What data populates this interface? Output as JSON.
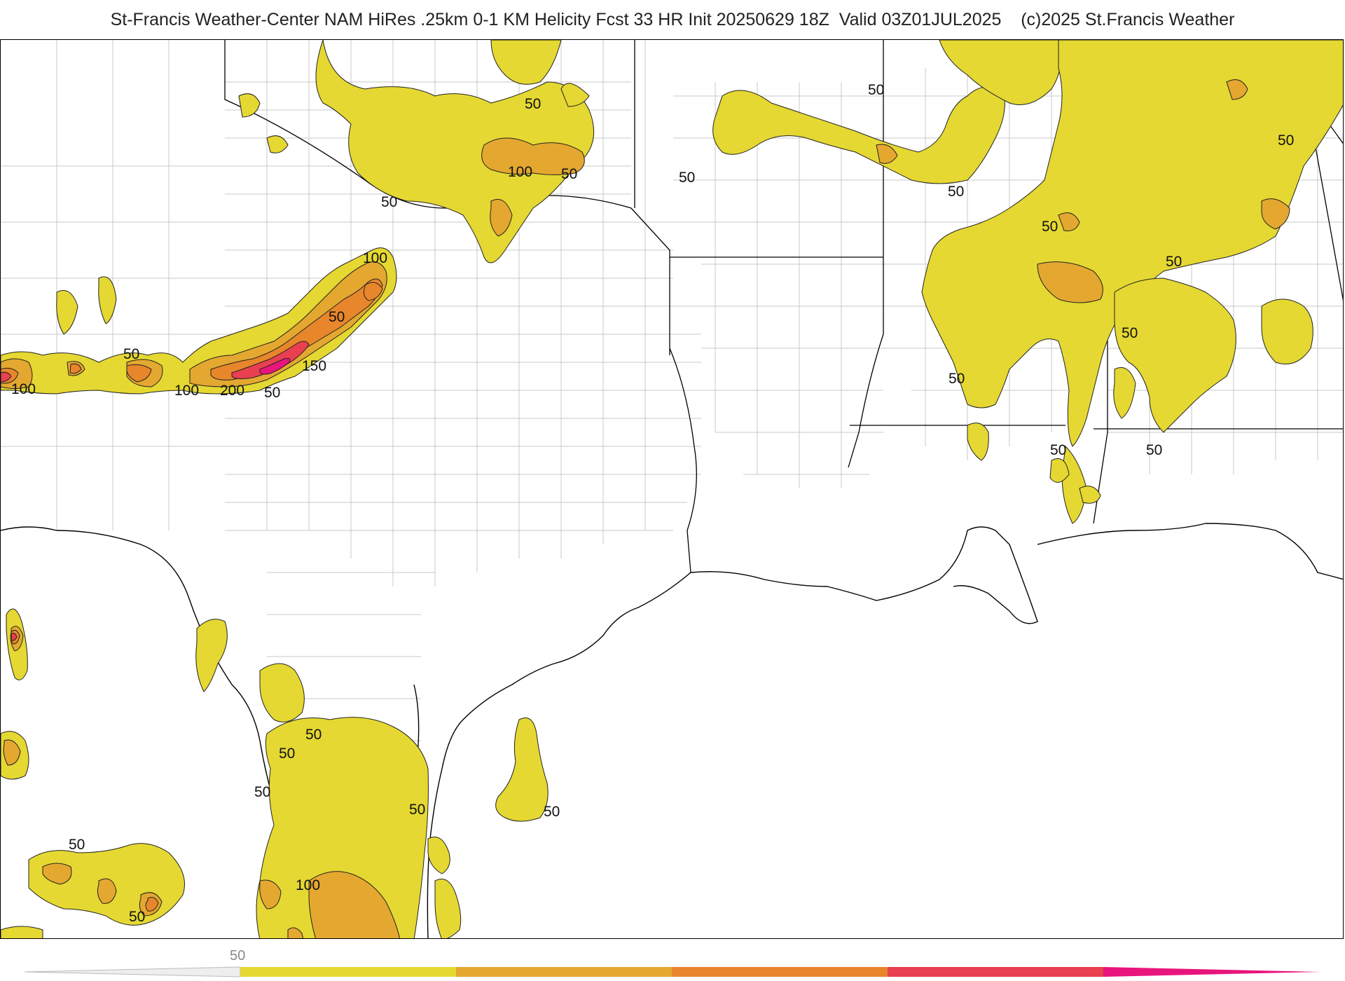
{
  "header": {
    "title": "St-Francis Weather-Center NAM HiRes .25km 0-1 KM Helicity Fcst 33 HR Init 20250629 18Z  Valid 03Z01JUL2025    (c)2025 St.Francis Weather"
  },
  "colors": {
    "land": "#ffffff",
    "county_line": "#c8c8c8",
    "state_line": "#000000",
    "coast_line": "#000000",
    "level_50": "#e5d832",
    "level_100": "#e4a830",
    "level_150": "#e8862b",
    "level_200": "#e84050",
    "level_250": "#e8157c"
  },
  "map": {
    "variable": "0-1 KM Helicity",
    "contour_labels": [
      "50",
      "100",
      "150",
      "200"
    ]
  },
  "colorbar": {
    "tick_label": "50",
    "segments": [
      "#e5d832",
      "#e4a830",
      "#e8862b",
      "#e84050",
      "#e8157c"
    ]
  }
}
